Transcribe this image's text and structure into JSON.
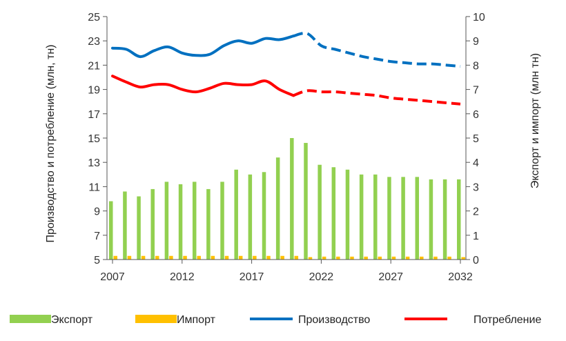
{
  "chart_data": {
    "type": "bar+line",
    "x_tick_labels": [
      "2007",
      "2012",
      "2017",
      "2022",
      "2027",
      "2032"
    ],
    "years": [
      2007,
      2008,
      2009,
      2010,
      2011,
      2012,
      2013,
      2014,
      2015,
      2016,
      2017,
      2018,
      2019,
      2020,
      2021,
      2022,
      2023,
      2024,
      2025,
      2026,
      2027,
      2028,
      2029,
      2030,
      2031,
      2032
    ],
    "left_axis": {
      "label": "Производство и потребление (млн, тн)",
      "min": 5,
      "max": 25,
      "ticks": [
        5,
        7,
        9,
        11,
        13,
        15,
        17,
        19,
        21,
        23,
        25
      ]
    },
    "right_axis": {
      "label": "Экспорт и импорт (млн тн)",
      "min": 0,
      "max": 10,
      "ticks": [
        0,
        1,
        2,
        3,
        4,
        5,
        6,
        7,
        8,
        9,
        10
      ]
    },
    "series": [
      {
        "name": "Экспорт",
        "kind": "bar",
        "axis": "right",
        "color": "#92d050",
        "values": [
          2.4,
          2.8,
          2.6,
          2.9,
          3.2,
          3.1,
          3.2,
          2.9,
          3.2,
          3.7,
          3.5,
          3.6,
          4.2,
          5.0,
          4.8,
          3.9,
          3.8,
          3.7,
          3.5,
          3.5,
          3.4,
          3.4,
          3.4,
          3.3,
          3.3,
          3.3
        ]
      },
      {
        "name": "Импорт",
        "kind": "bar",
        "axis": "right",
        "color": "#ffc000",
        "values": [
          0.15,
          0.15,
          0.15,
          0.15,
          0.15,
          0.15,
          0.15,
          0.15,
          0.15,
          0.15,
          0.15,
          0.15,
          0.15,
          0.15,
          0.1,
          0.12,
          0.12,
          0.12,
          0.12,
          0.12,
          0.12,
          0.12,
          0.12,
          0.12,
          0.12,
          0.1
        ]
      },
      {
        "name": "Производство",
        "kind": "line",
        "axis": "left",
        "color": "#0070c0",
        "actual_until": 2020,
        "values": [
          22.4,
          22.3,
          21.7,
          22.2,
          22.5,
          22.0,
          21.8,
          21.9,
          22.6,
          23.0,
          22.8,
          23.2,
          23.1,
          23.4,
          23.6,
          22.6,
          22.3,
          22.0,
          21.7,
          21.5,
          21.3,
          21.2,
          21.1,
          21.1,
          21.0,
          20.9
        ]
      },
      {
        "name": "Потребление",
        "kind": "line",
        "axis": "left",
        "color": "#ff0000",
        "actual_until": 2020,
        "values": [
          20.1,
          19.6,
          19.2,
          19.4,
          19.4,
          19.0,
          18.8,
          19.1,
          19.5,
          19.4,
          19.4,
          19.7,
          19.0,
          18.5,
          18.9,
          18.8,
          18.8,
          18.7,
          18.6,
          18.5,
          18.3,
          18.2,
          18.1,
          18.0,
          17.9,
          17.8
        ]
      }
    ],
    "grid": false,
    "legend_position": "bottom"
  }
}
